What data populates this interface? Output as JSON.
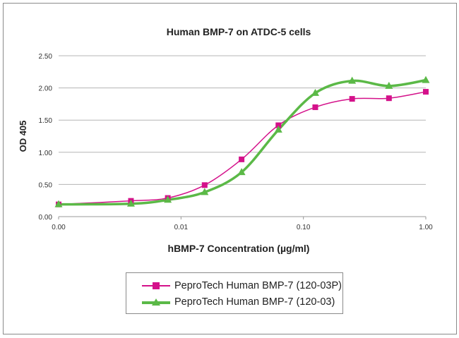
{
  "chart_data": {
    "type": "line",
    "title": "Human BMP-7 on ATDC-5 cells",
    "xlabel": "hBMP-7 Concentration (µg/ml)",
    "ylabel": "OD 405",
    "xscale": "log",
    "xlim": [
      0.001,
      1
    ],
    "ylim": [
      0,
      2.5
    ],
    "xticks": [
      0.001,
      0.01,
      0.1,
      1
    ],
    "xtick_labels": [
      "0.00",
      "0.01",
      "0.10",
      "1.00"
    ],
    "yticks": [
      0,
      0.5,
      1,
      1.5,
      2,
      2.5
    ],
    "ytick_labels": [
      "0.00",
      "0.50",
      "1.00",
      "1.50",
      "2.00",
      "2.50"
    ],
    "grid": "horizontal",
    "legend_position": "bottom",
    "x": [
      0.001,
      0.0039,
      0.0078,
      0.0156,
      0.03125,
      0.0625,
      0.125,
      0.25,
      0.5,
      1
    ],
    "series": [
      {
        "name": "PeproTech Human BMP-7 (120-03P)",
        "color": "#d4118a",
        "marker": "square",
        "values": [
          0.19,
          0.245,
          0.29,
          0.49,
          0.89,
          1.42,
          1.7,
          1.83,
          1.84,
          1.94
        ]
      },
      {
        "name": "PeproTech Human BMP-7 (120-03)",
        "color": "#5bb947",
        "marker": "triangle",
        "values": [
          0.19,
          0.2,
          0.26,
          0.38,
          0.69,
          1.35,
          1.92,
          2.11,
          2.03,
          2.12
        ]
      }
    ]
  }
}
